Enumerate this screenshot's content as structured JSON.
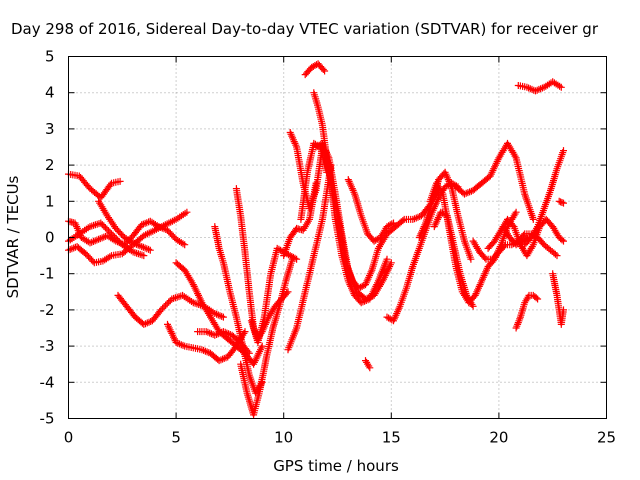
{
  "chart_data": {
    "type": "scatter",
    "title": "Day 298 of 2016, Sidereal Day-to-day VTEC variation (SDTVAR) for receiver gr",
    "xlabel": "GPS time / hours",
    "ylabel": "SDTVAR / TECUs",
    "xlim": [
      0,
      25
    ],
    "ylim": [
      -5,
      5
    ],
    "x_ticks": [
      "0",
      "5",
      "10",
      "15",
      "20",
      "25"
    ],
    "y_ticks": [
      "-5",
      "-4",
      "-3",
      "-2",
      "-1",
      "0",
      "1",
      "2",
      "3",
      "4",
      "5"
    ],
    "grid": true,
    "legend": "none",
    "marker": "+",
    "color": "#ff0000",
    "series": [
      {
        "x": [
          0.0,
          0.5,
          1.0,
          1.5,
          2.0,
          2.4
        ],
        "y": [
          1.75,
          1.7,
          1.35,
          1.1,
          1.5,
          1.55
        ]
      },
      {
        "x": [
          0.0,
          0.4,
          0.8,
          1.2,
          1.6,
          2.0,
          2.5,
          3.0,
          3.5,
          4.0,
          4.5,
          5.0,
          5.5
        ],
        "y": [
          -0.35,
          -0.25,
          -0.45,
          -0.7,
          -0.65,
          -0.5,
          -0.45,
          -0.2,
          0.05,
          0.2,
          0.35,
          0.5,
          0.7
        ]
      },
      {
        "x": [
          0.0,
          0.3,
          0.6,
          1.0,
          1.4,
          1.8,
          2.2,
          2.6,
          3.0,
          3.4,
          3.8,
          4.2,
          4.6,
          5.0,
          5.4
        ],
        "y": [
          0.45,
          0.4,
          0.0,
          -0.15,
          -0.05,
          0.05,
          -0.1,
          -0.2,
          0.05,
          0.35,
          0.45,
          0.3,
          0.2,
          -0.05,
          -0.2
        ]
      },
      {
        "x": [
          0.0,
          0.5,
          1.0,
          1.5,
          2.0,
          2.5,
          3.0,
          3.5
        ],
        "y": [
          -0.1,
          0.1,
          0.3,
          0.4,
          0.1,
          -0.2,
          -0.4,
          -0.5
        ]
      },
      {
        "x": [
          1.4,
          1.8,
          2.2,
          2.6,
          3.0,
          3.4,
          3.8
        ],
        "y": [
          1.0,
          0.6,
          0.25,
          0.0,
          -0.15,
          -0.25,
          -0.35
        ]
      },
      {
        "x": [
          2.3,
          2.7,
          3.1,
          3.5,
          3.9,
          4.3,
          4.8,
          5.3,
          5.8,
          6.3,
          6.8,
          7.2
        ],
        "y": [
          -1.6,
          -1.9,
          -2.2,
          -2.4,
          -2.3,
          -2.0,
          -1.7,
          -1.6,
          -1.8,
          -1.9,
          -2.1,
          -2.2
        ]
      },
      {
        "x": [
          4.6,
          5.0,
          5.4,
          5.8,
          6.2,
          6.6,
          7.0,
          7.4,
          7.8,
          8.2
        ],
        "y": [
          -2.4,
          -2.9,
          -3.0,
          -3.05,
          -3.1,
          -3.2,
          -3.4,
          -3.3,
          -3.0,
          -2.6
        ]
      },
      {
        "x": [
          5.0,
          5.4,
          5.8,
          6.2,
          6.6,
          7.0,
          7.4,
          7.8,
          8.2,
          8.6,
          9.0
        ],
        "y": [
          -0.7,
          -0.9,
          -1.3,
          -1.8,
          -2.2,
          -2.6,
          -2.8,
          -3.0,
          -3.2,
          -3.5,
          -3.0
        ]
      },
      {
        "x": [
          6.0,
          6.4,
          6.8,
          7.2,
          7.6,
          8.0,
          8.4
        ],
        "y": [
          -2.6,
          -2.6,
          -2.7,
          -2.6,
          -2.7,
          -2.9,
          -3.2
        ]
      },
      {
        "x": [
          6.8,
          7.0,
          7.2,
          7.5,
          7.8,
          8.1,
          8.4,
          8.7,
          9.0
        ],
        "y": [
          0.3,
          -0.3,
          -0.7,
          -1.5,
          -2.2,
          -3.0,
          -3.8,
          -4.3,
          -4.0
        ]
      },
      {
        "x": [
          7.8,
          8.0,
          8.2,
          8.4,
          8.6,
          8.8,
          9.0,
          9.3,
          9.6,
          9.9,
          10.2
        ],
        "y": [
          1.35,
          0.6,
          -0.4,
          -1.5,
          -2.5,
          -2.8,
          -2.6,
          -2.2,
          -1.9,
          -1.7,
          -1.5
        ]
      },
      {
        "x": [
          8.0,
          8.3,
          8.6,
          8.9,
          9.2,
          9.5,
          9.8,
          10.1,
          10.4
        ],
        "y": [
          -3.5,
          -4.3,
          -4.9,
          -4.2,
          -3.3,
          -2.5,
          -1.9,
          -1.2,
          -0.6
        ]
      },
      {
        "x": [
          8.5,
          8.8,
          9.1,
          9.4,
          9.7,
          10.0,
          10.3,
          10.6
        ],
        "y": [
          -2.3,
          -2.9,
          -2.2,
          -1.0,
          -0.3,
          -0.4,
          -0.5,
          -0.6
        ]
      },
      {
        "x": [
          10.0,
          10.3,
          10.6,
          10.9,
          11.2,
          11.5
        ],
        "y": [
          -0.5,
          0.0,
          0.25,
          0.2,
          0.5,
          1.5
        ]
      },
      {
        "x": [
          10.2,
          10.6,
          11.0,
          11.4,
          11.8,
          12.2
        ],
        "y": [
          -3.1,
          -2.5,
          -1.5,
          -0.5,
          0.5,
          2.0
        ]
      },
      {
        "x": [
          10.3,
          10.6,
          10.9,
          11.2,
          11.5,
          11.8,
          12.1,
          12.4,
          12.7,
          13.0,
          13.3,
          13.6,
          14.0,
          14.4,
          14.8
        ],
        "y": [
          2.9,
          2.5,
          1.5,
          0.8,
          1.3,
          2.5,
          2.0,
          0.5,
          -0.5,
          -1.2,
          -1.6,
          -1.8,
          -1.7,
          -1.2,
          -0.6
        ]
      },
      {
        "x": [
          10.8,
          11.1,
          11.4,
          11.7,
          12.0
        ],
        "y": [
          0.5,
          1.8,
          2.6,
          2.5,
          1.8
        ]
      },
      {
        "x": [
          11.0,
          11.3,
          11.6,
          11.9
        ],
        "y": [
          4.5,
          4.7,
          4.8,
          4.6
        ]
      },
      {
        "x": [
          11.4,
          11.6,
          11.8,
          12.0,
          12.3,
          12.6,
          12.9,
          13.2,
          13.5,
          13.8,
          14.1,
          14.4,
          14.8,
          15.2,
          15.6,
          16.0,
          16.4,
          16.8,
          17.2
        ],
        "y": [
          4.0,
          3.6,
          3.1,
          2.2,
          1.2,
          0.3,
          -0.7,
          -1.2,
          -1.4,
          -1.3,
          -0.9,
          -0.3,
          0.1,
          0.3,
          0.5,
          0.5,
          0.6,
          0.9,
          1.3
        ]
      },
      {
        "x": [
          11.5,
          11.8,
          12.1,
          12.4,
          12.7,
          13.0,
          13.4,
          13.8,
          14.2,
          14.6,
          15.0
        ],
        "y": [
          2.5,
          2.6,
          2.2,
          1.2,
          0.1,
          -0.9,
          -1.5,
          -1.7,
          -1.6,
          -1.2,
          -0.7
        ]
      },
      {
        "x": [
          13.0,
          13.3,
          13.6,
          13.9,
          14.2,
          14.5,
          14.8,
          15.1
        ],
        "y": [
          1.6,
          1.2,
          0.6,
          0.1,
          -0.1,
          0.0,
          0.3,
          0.4
        ]
      },
      {
        "x": [
          13.8,
          13.9,
          14.0
        ],
        "y": [
          -3.4,
          -3.5,
          -3.6
        ]
      },
      {
        "x": [
          14.8,
          15.1,
          15.4,
          15.7,
          16.0,
          16.3,
          16.6,
          16.9,
          17.2,
          17.5,
          17.8,
          18.1
        ],
        "y": [
          -2.2,
          -2.3,
          -1.9,
          -1.4,
          -0.8,
          -0.3,
          0.2,
          0.7,
          1.1,
          1.4,
          1.5,
          1.4
        ]
      },
      {
        "x": [
          16.3,
          16.6,
          16.9,
          17.2,
          17.5,
          17.8,
          18.1,
          18.4,
          18.7
        ],
        "y": [
          0.0,
          0.4,
          1.0,
          1.6,
          1.8,
          1.4,
          0.6,
          -0.1,
          -0.6
        ]
      },
      {
        "x": [
          16.8,
          17.1,
          17.4,
          17.7,
          18.0,
          18.3,
          18.6,
          18.9,
          19.2,
          19.5,
          19.8,
          20.1,
          20.4,
          20.8
        ],
        "y": [
          1.0,
          1.5,
          1.2,
          0.2,
          -0.8,
          -1.5,
          -1.8,
          -1.6,
          -1.2,
          -0.8,
          -0.6,
          -0.2,
          0.3,
          0.7
        ]
      },
      {
        "x": [
          17.0,
          17.3,
          17.6,
          17.9,
          18.2,
          18.5,
          18.8
        ],
        "y": [
          0.3,
          0.7,
          0.6,
          -0.2,
          -1.0,
          -1.6,
          -1.9
        ]
      },
      {
        "x": [
          18.0,
          18.4,
          18.8,
          19.2,
          19.6,
          20.0,
          20.4,
          20.8,
          21.2,
          21.6
        ],
        "y": [
          1.4,
          1.2,
          1.3,
          1.5,
          1.7,
          2.2,
          2.6,
          2.2,
          1.2,
          0.5
        ]
      },
      {
        "x": [
          18.8,
          19.1,
          19.4,
          19.7,
          20.0,
          20.3,
          20.6,
          20.9,
          21.2,
          21.5,
          21.8,
          22.1,
          22.4,
          22.7
        ],
        "y": [
          -0.1,
          -0.4,
          -0.6,
          -0.6,
          -0.4,
          -0.2,
          -0.2,
          -0.1,
          0.1,
          0.1,
          0.0,
          -0.2,
          -0.35,
          -0.5
        ]
      },
      {
        "x": [
          19.5,
          19.8,
          20.1,
          20.4,
          20.7,
          21.0,
          21.3,
          21.6,
          21.9,
          22.2,
          22.5,
          22.8,
          23.0
        ],
        "y": [
          -0.3,
          -0.1,
          0.2,
          0.5,
          0.3,
          -0.2,
          -0.5,
          -0.2,
          0.3,
          0.5,
          0.3,
          0.0,
          -0.1
        ]
      },
      {
        "x": [
          20.2,
          20.5,
          20.8,
          21.1,
          21.4
        ],
        "y": [
          0.3,
          0.0,
          -0.2,
          -0.1,
          0.0
        ]
      },
      {
        "x": [
          20.8,
          21.0,
          21.2,
          21.4,
          21.6,
          21.8
        ],
        "y": [
          -2.5,
          -2.2,
          -1.8,
          -1.6,
          -1.6,
          -1.7
        ]
      },
      {
        "x": [
          20.9,
          21.3,
          21.7,
          22.1,
          22.5,
          22.9
        ],
        "y": [
          4.2,
          4.15,
          4.05,
          4.15,
          4.3,
          4.15
        ]
      },
      {
        "x": [
          21.2,
          21.5,
          21.8,
          22.1,
          22.4,
          22.7,
          23.0
        ],
        "y": [
          -0.2,
          0.0,
          0.3,
          0.8,
          1.3,
          1.9,
          2.4
        ]
      },
      {
        "x": [
          22.5,
          22.7,
          22.9,
          23.0
        ],
        "y": [
          -1.0,
          -1.6,
          -2.4,
          -2.0
        ]
      },
      {
        "x": [
          22.8,
          23.0
        ],
        "y": [
          1.0,
          0.95
        ]
      }
    ]
  }
}
